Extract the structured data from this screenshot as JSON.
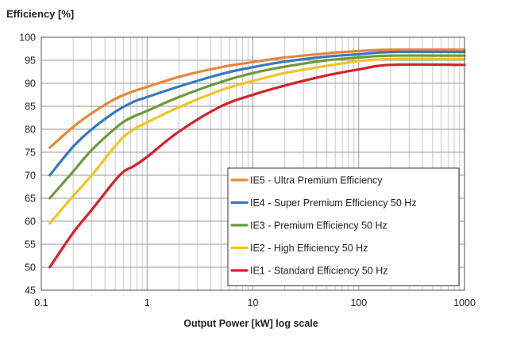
{
  "chart_data": {
    "type": "line",
    "title": "",
    "ylabel": "Efficiency [%]",
    "xlabel": "Output Power [kW]  log scale",
    "xscale": "log",
    "xlim": [
      0.1,
      1000
    ],
    "ylim": [
      45,
      100
    ],
    "xticks": [
      0.1,
      1,
      10,
      100,
      1000
    ],
    "xtick_labels": [
      "0.1",
      "1",
      "10",
      "100",
      "1000"
    ],
    "yticks": [
      45,
      50,
      55,
      60,
      65,
      70,
      75,
      80,
      85,
      90,
      95,
      100
    ],
    "ytick_labels": [
      "45",
      "50",
      "55",
      "60",
      "65",
      "70",
      "75",
      "80",
      "85",
      "90",
      "95",
      "100"
    ],
    "grid": true,
    "legend_position": "bottom-right",
    "series": [
      {
        "name": "IE5 - Ultra Premium Efficiency",
        "color": "#e8863a",
        "points": [
          [
            0.12,
            76
          ],
          [
            0.2,
            80.5
          ],
          [
            0.3,
            83.5
          ],
          [
            0.5,
            86.6
          ],
          [
            0.75,
            88.3
          ],
          [
            1,
            89.2
          ],
          [
            2,
            91.4
          ],
          [
            5,
            93.5
          ],
          [
            10,
            94.6
          ],
          [
            20,
            95.6
          ],
          [
            50,
            96.5
          ],
          [
            100,
            97
          ],
          [
            200,
            97.3
          ],
          [
            1000,
            97.3
          ]
        ]
      },
      {
        "name": "IE4 - Super Premium Efficiency 50 Hz",
        "color": "#3a78c2",
        "points": [
          [
            0.12,
            70
          ],
          [
            0.2,
            76.2
          ],
          [
            0.3,
            80
          ],
          [
            0.5,
            83.8
          ],
          [
            0.75,
            86
          ],
          [
            1,
            87
          ],
          [
            2,
            89.3
          ],
          [
            5,
            92
          ],
          [
            10,
            93.5
          ],
          [
            20,
            94.7
          ],
          [
            50,
            95.8
          ],
          [
            100,
            96.3
          ],
          [
            200,
            96.8
          ],
          [
            1000,
            96.8
          ]
        ]
      },
      {
        "name": "IE3 - Premium Efficiency 50 Hz",
        "color": "#6d9a3a",
        "points": [
          [
            0.12,
            65
          ],
          [
            0.2,
            70.8
          ],
          [
            0.3,
            75.5
          ],
          [
            0.55,
            81
          ],
          [
            0.75,
            82.8
          ],
          [
            1,
            84
          ],
          [
            2,
            87
          ],
          [
            5,
            90.3
          ],
          [
            10,
            92.2
          ],
          [
            20,
            93.6
          ],
          [
            50,
            95
          ],
          [
            100,
            95.6
          ],
          [
            200,
            96
          ],
          [
            1000,
            96
          ]
        ]
      },
      {
        "name": "IE2 - High Efficiency 50 Hz",
        "color": "#f5c320",
        "points": [
          [
            0.12,
            59.5
          ],
          [
            0.2,
            65.5
          ],
          [
            0.3,
            70
          ],
          [
            0.55,
            77.5
          ],
          [
            0.75,
            80
          ],
          [
            1,
            81.5
          ],
          [
            2,
            84.8
          ],
          [
            5,
            88.5
          ],
          [
            10,
            90.5
          ],
          [
            20,
            92.2
          ],
          [
            50,
            93.8
          ],
          [
            100,
            94.8
          ],
          [
            200,
            95.3
          ],
          [
            1000,
            95.3
          ]
        ]
      },
      {
        "name": "IE1 - Standard Efficiency 50 Hz",
        "color": "#d8202c",
        "points": [
          [
            0.12,
            50
          ],
          [
            0.2,
            57.5
          ],
          [
            0.3,
            62.5
          ],
          [
            0.55,
            70
          ],
          [
            0.75,
            72
          ],
          [
            1,
            74
          ],
          [
            2,
            79.5
          ],
          [
            5,
            85
          ],
          [
            10,
            87.5
          ],
          [
            20,
            89.5
          ],
          [
            50,
            91.7
          ],
          [
            100,
            93
          ],
          [
            200,
            94
          ],
          [
            1000,
            94
          ]
        ]
      }
    ]
  }
}
